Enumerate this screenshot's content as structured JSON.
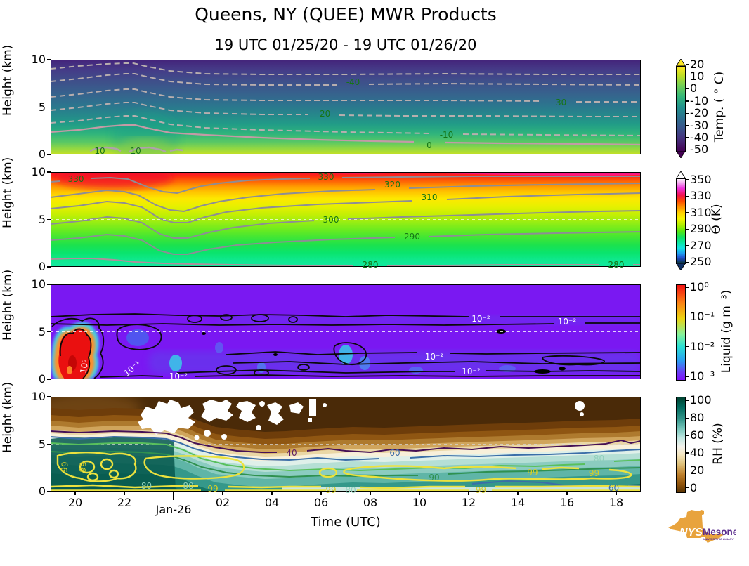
{
  "header": {
    "title": "Queens, NY (QUEE) MWR Products",
    "subtitle": "19 UTC 01/25/20 - 19 UTC 01/26/20"
  },
  "xaxis": {
    "label": "Time (UTC)",
    "ticks": [
      {
        "t": 1,
        "label": "20",
        "major": false
      },
      {
        "t": 3,
        "label": "22",
        "major": false
      },
      {
        "t": 5,
        "label": "Jan-26",
        "major": true
      },
      {
        "t": 7,
        "label": "02",
        "major": false
      },
      {
        "t": 9,
        "label": "04",
        "major": false
      },
      {
        "t": 11,
        "label": "06",
        "major": false
      },
      {
        "t": 13,
        "label": "08",
        "major": false
      },
      {
        "t": 15,
        "label": "10",
        "major": false
      },
      {
        "t": 17,
        "label": "12",
        "major": false
      },
      {
        "t": 19,
        "label": "14",
        "major": false
      },
      {
        "t": 21,
        "label": "16",
        "major": false
      },
      {
        "t": 23,
        "label": "18",
        "major": false
      }
    ]
  },
  "yaxis": {
    "label": "Height (km)",
    "ticks": [
      {
        "km": 10,
        "label": "10"
      },
      {
        "km": 5,
        "label": "5"
      },
      {
        "km": 0,
        "label": "0"
      }
    ]
  },
  "colorbars": [
    {
      "label": "Temp. ( ° C)",
      "arrows": true,
      "ticks": [
        {
          "v": "20",
          "f": 0.05
        },
        {
          "v": "10",
          "f": 0.179
        },
        {
          "v": "0",
          "f": 0.307
        },
        {
          "v": "-10",
          "f": 0.436
        },
        {
          "v": "-20",
          "f": 0.564
        },
        {
          "v": "-30",
          "f": 0.693
        },
        {
          "v": "-40",
          "f": 0.821
        },
        {
          "v": "-50",
          "f": 0.95
        }
      ]
    },
    {
      "label": "Θ (K)",
      "arrows": true,
      "ticks": [
        {
          "v": "350",
          "f": 0.08
        },
        {
          "v": "330",
          "f": 0.254
        },
        {
          "v": "310",
          "f": 0.428
        },
        {
          "v": "290",
          "f": 0.602
        },
        {
          "v": "270",
          "f": 0.776
        },
        {
          "v": "250",
          "f": 0.95
        }
      ]
    },
    {
      "label": "Liquid (g m⁻³)",
      "arrows": false,
      "ticks": [
        {
          "v": "10⁰",
          "f": 0.03
        },
        {
          "v": "10⁻¹",
          "f": 0.343
        },
        {
          "v": "10⁻²",
          "f": 0.657
        },
        {
          "v": "10⁻³",
          "f": 0.97
        }
      ]
    },
    {
      "label": "RH (%)",
      "arrows": false,
      "ticks": [
        {
          "v": "100",
          "f": 0.04
        },
        {
          "v": "80",
          "f": 0.224
        },
        {
          "v": "60",
          "f": 0.408
        },
        {
          "v": "40",
          "f": 0.592
        },
        {
          "v": "20",
          "f": 0.776
        },
        {
          "v": "0",
          "f": 0.96
        }
      ]
    }
  ],
  "panels": [
    {
      "name": "temperature",
      "contour_labels": [
        {
          "t": 2.0,
          "km": 0.37,
          "text": "10",
          "color": "#157515",
          "rot": 0
        },
        {
          "t": 3.46,
          "km": 0.37,
          "text": "10",
          "color": "#157515",
          "rot": 0
        },
        {
          "t": 11.1,
          "km": 4.3,
          "text": "-20",
          "color": "#157515",
          "rot": 0
        },
        {
          "t": 12.3,
          "km": 7.6,
          "text": "-40",
          "color": "#157515",
          "rot": 0
        },
        {
          "t": 15.4,
          "km": 0.96,
          "text": "0",
          "color": "#157515",
          "rot": 0
        },
        {
          "t": 16.1,
          "km": 2.07,
          "text": "-10",
          "color": "#157515",
          "rot": 0
        },
        {
          "t": 20.7,
          "km": 5.5,
          "text": "-30",
          "color": "#157515",
          "rot": 0
        }
      ]
    },
    {
      "name": "potential-temperature",
      "contour_labels": [
        {
          "t": 1.03,
          "km": 9.26,
          "text": "330",
          "color": "#157515",
          "rot": 0
        },
        {
          "t": 11.2,
          "km": 9.5,
          "text": "330",
          "color": "#157515",
          "rot": 0
        },
        {
          "t": 13.9,
          "km": 8.7,
          "text": "320",
          "color": "#157515",
          "rot": 0
        },
        {
          "t": 15.4,
          "km": 7.3,
          "text": "310",
          "color": "#157515",
          "rot": 0
        },
        {
          "t": 11.4,
          "km": 5.0,
          "text": "300",
          "color": "#157515",
          "rot": 0
        },
        {
          "t": 14.7,
          "km": 3.2,
          "text": "290",
          "color": "#157515",
          "rot": 0
        },
        {
          "t": 13.0,
          "km": 0.25,
          "text": "280",
          "color": "#157515",
          "rot": 0
        },
        {
          "t": 23.0,
          "km": 0.25,
          "text": "280",
          "color": "#157515",
          "rot": 0
        }
      ]
    },
    {
      "name": "liquid",
      "contour_labels": [
        {
          "t": 1.37,
          "km": 1.33,
          "text": "10⁰",
          "color": "#ffffff",
          "rot": -80
        },
        {
          "t": 3.3,
          "km": 1.1,
          "text": "10⁻¹",
          "color": "#ffffff",
          "rot": -40
        },
        {
          "t": 5.2,
          "km": 0.3,
          "text": "10⁻²",
          "color": "#ffffff",
          "rot": 0
        },
        {
          "t": 15.6,
          "km": 2.4,
          "text": "10⁻²",
          "color": "#ffffff",
          "rot": 0
        },
        {
          "t": 17.1,
          "km": 0.8,
          "text": "10⁻²",
          "color": "#ffffff",
          "rot": 0
        },
        {
          "t": 17.5,
          "km": 6.4,
          "text": "10⁻²",
          "color": "#ffffff",
          "rot": 0
        },
        {
          "t": 21.0,
          "km": 6.1,
          "text": "10⁻²",
          "color": "#ffffff",
          "rot": 0
        }
      ]
    },
    {
      "name": "relative-humidity",
      "contour_labels": [
        {
          "t": 0.57,
          "km": 2.6,
          "text": "99",
          "color": "#d6ce25",
          "rot": -85
        },
        {
          "t": 1.3,
          "km": 2.6,
          "text": "99",
          "color": "#d6ce25",
          "rot": -85
        },
        {
          "t": 9.8,
          "km": 4.1,
          "text": "40",
          "color": "#5c1a66",
          "rot": 0
        },
        {
          "t": 14.0,
          "km": 4.1,
          "text": "60",
          "color": "#3a6ea8",
          "rot": 0
        },
        {
          "t": 15.6,
          "km": 1.5,
          "text": "90",
          "color": "#2f9150",
          "rot": 0
        },
        {
          "t": 19.6,
          "km": 2.0,
          "text": "99",
          "color": "#d6ce25",
          "rot": 0
        },
        {
          "t": 22.1,
          "km": 1.9,
          "text": "99",
          "color": "#d6ce25",
          "rot": 0
        },
        {
          "t": 22.3,
          "km": 3.5,
          "text": "80",
          "color": "#8fd0bb",
          "rot": 0
        },
        {
          "t": 3.9,
          "km": 0.6,
          "text": "80",
          "color": "#8fd0bb",
          "rot": 0
        },
        {
          "t": 5.6,
          "km": 0.6,
          "text": "80",
          "color": "#8fd0bb",
          "rot": 0
        },
        {
          "t": 6.6,
          "km": 0.28,
          "text": "99",
          "color": "#d6ce25",
          "rot": 0
        },
        {
          "t": 11.4,
          "km": 0.15,
          "text": "99",
          "color": "#d6ce25",
          "rot": 0
        },
        {
          "t": 12.2,
          "km": 0.15,
          "text": "80",
          "color": "#8fd0bb",
          "rot": 0
        },
        {
          "t": 17.5,
          "km": 0.15,
          "text": "99",
          "color": "#d6ce25",
          "rot": 0
        },
        {
          "t": 22.9,
          "km": 0.4,
          "text": "60",
          "color": "#3a6ea8",
          "rot": 0
        }
      ]
    }
  ],
  "logo": {
    "nys": "NYS",
    "mesonet": "Mesonet",
    "tagline": "UNIVERSITY AT ALBANY"
  },
  "chart_data": [
    {
      "type": "heatmap",
      "quantity": "Temperature",
      "units": "°C",
      "colormap": "viridis",
      "value_range": [
        -50,
        20
      ],
      "x_range_utc": [
        "19:00 01/25/20",
        "19:00 01/26/20"
      ],
      "y_km": [
        0,
        10
      ],
      "contour_levels": [
        -50,
        -40,
        -30,
        -20,
        -10,
        0,
        10
      ],
      "labeled_contours": [
        {
          "level": 10,
          "h_km": 0.4
        },
        {
          "level": 0,
          "h_km": 1.0
        },
        {
          "level": -10,
          "h_km": 2.1
        },
        {
          "level": -20,
          "h_km": 4.3
        },
        {
          "level": -30,
          "h_km": 5.5
        },
        {
          "level": -40,
          "h_km": 7.6
        }
      ],
      "notes": "Surface ~10-12 °C at 19-21 UTC cooling to ~2 °C; isotherms slope downward with time; warm bump near 20-21 UTC; ~-55 °C at 10 km."
    },
    {
      "type": "heatmap",
      "quantity": "Potential temperature Θ",
      "units": "K",
      "colormap": "rainbow",
      "value_range": [
        250,
        350
      ],
      "x_range_utc": [
        "19:00 01/25/20",
        "19:00 01/26/20"
      ],
      "y_km": [
        0,
        10
      ],
      "contour_levels": [
        280,
        290,
        300,
        310,
        320,
        330
      ],
      "labeled_contours": [
        {
          "level": 280,
          "h_km": 0.2
        },
        {
          "level": 290,
          "h_km": 3.0
        },
        {
          "level": 300,
          "h_km": 5.0
        },
        {
          "level": 310,
          "h_km": 7.3
        },
        {
          "level": 320,
          "h_km": 8.7
        },
        {
          "level": 330,
          "h_km": 9.4
        }
      ],
      "notes": "Θ increases with height from ~278 K at surface to ~335 K at 10 km; isentropes dip near 21-22 UTC then flatten."
    },
    {
      "type": "heatmap",
      "quantity": "Liquid water content",
      "units": "g m⁻³",
      "colormap": "rainbow",
      "value_range_log10": [
        -3,
        0
      ],
      "x_range_utc": [
        "19:00 01/25/20",
        "19:00 01/26/20"
      ],
      "y_km": [
        0,
        10
      ],
      "contour_levels_g_m3": [
        0.01
      ],
      "features": "Background ~10⁻³ g m⁻³; 10⁻² contour bands near 6-6.5 km and 0-2.5 km all day; heavy liquid core ~1 g m⁻³ at 19:30-21:00 UTC below 5 km."
    },
    {
      "type": "heatmap",
      "quantity": "Relative humidity",
      "units": "%",
      "colormap": "BrBG",
      "value_range": [
        0,
        100
      ],
      "x_range_utc": [
        "19:00 01/25/20",
        "19:00 01/26/20"
      ],
      "y_km": [
        0,
        10
      ],
      "contour_levels": [
        40,
        60,
        80,
        90,
        99
      ],
      "features": "Moist layer (RH>80-99%) below ~4.5 km all period, deepest (to ~6 km) before 22 UTC; very dry air aloft (RH<10%); white patches = missing data 22:30-02:30 UTC above 6 km."
    }
  ]
}
